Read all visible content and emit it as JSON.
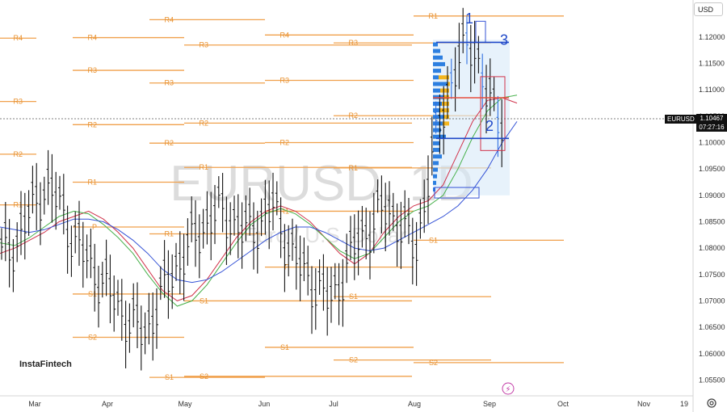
{
  "symbol_watermark": "EURUSD, 1D",
  "description_watermark": "Euro / U.S. Dollar",
  "currency_selector": "USD",
  "brand_logo": "InstaFintech",
  "last_price": {
    "symbol": "EURUSD",
    "price": "1.10467",
    "countdown": "07:27:16"
  },
  "wave_labels": [
    "1",
    "2",
    "3"
  ],
  "colors": {
    "pivot": "#f0a04b",
    "bull": "#2f6fe0",
    "bear": "#e74c3c",
    "ma_red": "#d0324a",
    "ma_green": "#46b04a",
    "ma_blue": "#3553d6",
    "volume_profile_blue": "#2d7fe0",
    "volume_profile_yellow": "#f3b61f",
    "wave": "#1f48c8"
  },
  "chart_data": {
    "type": "line",
    "title": "EURUSD, 1D",
    "subtitle": "Euro / U.S. Dollar",
    "y_ticks": [
      "1.12000",
      "1.11500",
      "1.11000",
      "1.10500",
      "1.10000",
      "1.09500",
      "1.09000",
      "1.08500",
      "1.08000",
      "1.07500",
      "1.07000",
      "1.06500",
      "1.06000",
      "1.05500"
    ],
    "ylim": [
      1.052,
      1.1255
    ],
    "x_ticks": [
      "Mar",
      "Apr",
      "May",
      "Jun",
      "Jul",
      "Aug",
      "Sep",
      "Oct",
      "Nov",
      "19"
    ],
    "grid": false,
    "pivot_levels": [
      {
        "label": "R4",
        "price": 1.1198,
        "period": "Feb"
      },
      {
        "label": "R3",
        "price": 1.1078,
        "period": "Feb"
      },
      {
        "label": "R2",
        "price": 1.0978,
        "period": "Feb"
      },
      {
        "label": "R1",
        "price": 1.0882,
        "period": "Feb"
      },
      {
        "label": "R4",
        "price": 1.1199,
        "period": "Mar"
      },
      {
        "label": "R3",
        "price": 1.1137,
        "period": "Mar"
      },
      {
        "label": "R2",
        "price": 1.1034,
        "period": "Mar"
      },
      {
        "label": "R1",
        "price": 1.0925,
        "period": "Mar"
      },
      {
        "label": "P",
        "price": 1.084,
        "period": "Mar"
      },
      {
        "label": "S1",
        "price": 1.0713,
        "period": "Mar"
      },
      {
        "label": "S2",
        "price": 1.0631,
        "period": "Mar"
      },
      {
        "label": "R4",
        "price": 1.1233,
        "period": "Apr"
      },
      {
        "label": "R3",
        "price": 1.1113,
        "period": "Apr"
      },
      {
        "label": "R2",
        "price": 1.0999,
        "period": "Apr"
      },
      {
        "label": "R1",
        "price": 1.0827,
        "period": "Apr"
      },
      {
        "label": "S1",
        "price": 1.0555,
        "period": "Apr"
      },
      {
        "label": "R3",
        "price": 1.1185,
        "period": "May"
      },
      {
        "label": "R2",
        "price": 1.1037,
        "period": "May"
      },
      {
        "label": "R1",
        "price": 1.0953,
        "period": "May"
      },
      {
        "label": "S1",
        "price": 1.07,
        "period": "May"
      },
      {
        "label": "S2",
        "price": 1.0557,
        "period": "May"
      },
      {
        "label": "R4",
        "price": 1.1204,
        "period": "Jun"
      },
      {
        "label": "R3",
        "price": 1.1118,
        "period": "Jun"
      },
      {
        "label": "R2",
        "price": 1.1,
        "period": "Jun"
      },
      {
        "label": "R1",
        "price": 1.087,
        "period": "Jun"
      },
      {
        "label": "P",
        "price": 1.0764,
        "period": "Jun"
      },
      {
        "label": "S1",
        "price": 1.0612,
        "period": "Jun"
      },
      {
        "label": "R3",
        "price": 1.1189,
        "period": "Jul"
      },
      {
        "label": "R2",
        "price": 1.1051,
        "period": "Jul"
      },
      {
        "label": "R1",
        "price": 1.0952,
        "period": "Jul"
      },
      {
        "label": "S1",
        "price": 1.0708,
        "period": "Jul"
      },
      {
        "label": "S2",
        "price": 1.0588,
        "period": "Jul"
      },
      {
        "label": "R1",
        "price": 1.124,
        "period": "Aug"
      },
      {
        "label": "S1",
        "price": 1.0815,
        "period": "Aug"
      },
      {
        "label": "S2",
        "price": 1.0583,
        "period": "Aug"
      }
    ],
    "moving_averages": [
      {
        "color": "red",
        "values": [
          1.079,
          1.08,
          1.0815,
          1.083,
          1.085,
          1.086,
          1.087,
          1.0855,
          1.083,
          1.08,
          1.076,
          1.072,
          1.07,
          1.071,
          1.074,
          1.078,
          1.082,
          1.085,
          1.087,
          1.088,
          1.087,
          1.085,
          1.082,
          1.079,
          1.077,
          1.079,
          1.083,
          1.086,
          1.088,
          1.089,
          1.092,
          1.098,
          1.104,
          1.108,
          1.1085,
          1.1075
        ]
      },
      {
        "color": "green",
        "values": [
          1.081,
          1.0805,
          1.082,
          1.084,
          1.086,
          1.087,
          1.0865,
          1.0845,
          1.082,
          1.079,
          1.075,
          1.0715,
          1.069,
          1.07,
          1.073,
          1.077,
          1.081,
          1.0845,
          1.0865,
          1.0875,
          1.0865,
          1.0845,
          1.082,
          1.0795,
          1.078,
          1.079,
          1.082,
          1.085,
          1.087,
          1.088,
          1.09,
          1.095,
          1.101,
          1.106,
          1.1085,
          1.109
        ]
      },
      {
        "color": "blue",
        "values": [
          1.084,
          1.0835,
          1.083,
          1.0835,
          1.0845,
          1.0855,
          1.0855,
          1.085,
          1.0835,
          1.0815,
          1.079,
          1.076,
          1.074,
          1.0735,
          1.074,
          1.0755,
          1.0775,
          1.0795,
          1.0815,
          1.083,
          1.084,
          1.084,
          1.083,
          1.0815,
          1.08,
          1.0795,
          1.08,
          1.0815,
          1.083,
          1.0845,
          1.086,
          1.088,
          1.091,
          1.095,
          1.1,
          1.104
        ]
      }
    ],
    "price_path": [
      1.079,
      1.081,
      1.087,
      1.092,
      1.089,
      1.082,
      1.078,
      1.074,
      1.07,
      1.066,
      1.064,
      1.07,
      1.076,
      1.08,
      1.084,
      1.087,
      1.086,
      1.083,
      1.085,
      1.088,
      1.081,
      1.076,
      1.073,
      1.07,
      1.076,
      1.082,
      1.085,
      1.088,
      1.084,
      1.08,
      1.096,
      1.108,
      1.116,
      1.12,
      1.108,
      1.105
    ],
    "last_price": 1.10467
  }
}
